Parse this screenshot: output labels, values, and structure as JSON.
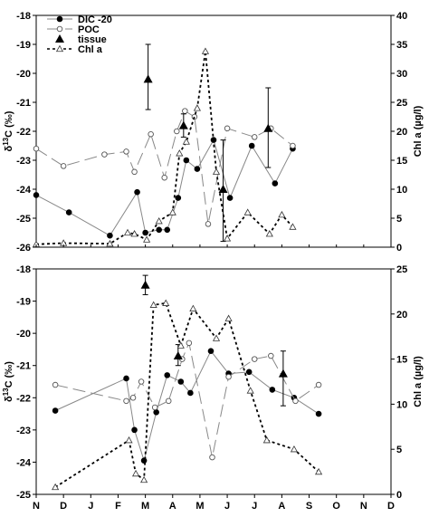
{
  "months": [
    "N",
    "D",
    "J",
    "F",
    "M",
    "A",
    "M",
    "J",
    "J",
    "A",
    "S",
    "O",
    "N",
    "D"
  ],
  "chart_data": [
    {
      "type": "line",
      "panel": "top",
      "ylabel_left": "δ13C (‰)",
      "ylabel_right": "Chl a (µg/l)",
      "ylim_left": [
        -26,
        -18
      ],
      "ylim_right": [
        0,
        40
      ],
      "yticks_left": [
        "-18",
        "-19",
        "-20",
        "-21",
        "-22",
        "-23",
        "-24",
        "-25",
        "-26"
      ],
      "yticks_right": [
        "40",
        "35",
        "30",
        "25",
        "20",
        "15",
        "10",
        "5",
        "0"
      ],
      "legend": {
        "placement": "top-left",
        "entries": [
          "DIC -20",
          "POC",
          "tissue",
          "Chl a"
        ]
      },
      "series": [
        {
          "name": "DIC -20",
          "axis": "left",
          "points": [
            [
              0.0,
              -24.2
            ],
            [
              1.2,
              -24.8
            ],
            [
              2.7,
              -25.6
            ],
            [
              3.7,
              -24.1
            ],
            [
              4.0,
              -25.5
            ],
            [
              4.5,
              -25.4
            ],
            [
              4.8,
              -25.4
            ],
            [
              5.2,
              -24.3
            ],
            [
              5.5,
              -23.0
            ],
            [
              5.9,
              -23.3
            ],
            [
              6.5,
              -22.3
            ],
            [
              7.1,
              -24.3
            ],
            [
              7.9,
              -22.5
            ],
            [
              8.75,
              -23.8
            ],
            [
              9.4,
              -22.6
            ]
          ]
        },
        {
          "name": "POC",
          "axis": "left",
          "points": [
            [
              0.0,
              -22.6
            ],
            [
              1.0,
              -23.2
            ],
            [
              2.5,
              -22.8
            ],
            [
              3.3,
              -22.7
            ],
            [
              3.6,
              -23.4
            ],
            [
              4.2,
              -22.1
            ],
            [
              4.7,
              -23.6
            ],
            [
              5.15,
              -22.0
            ],
            [
              5.45,
              -21.3
            ],
            [
              5.8,
              -21.5
            ],
            [
              6.3,
              -25.2
            ],
            [
              7.0,
              -21.9
            ],
            [
              8.0,
              -22.2
            ],
            [
              8.6,
              -21.9
            ],
            [
              9.4,
              -22.5
            ]
          ]
        },
        {
          "name": "tissue",
          "axis": "left",
          "points": [
            [
              4.1,
              -20.2,
              -21.25,
              -19.0
            ],
            [
              5.4,
              -21.8,
              -22.2,
              -21.4
            ],
            [
              6.85,
              -24.0,
              -25.8,
              -22.3
            ],
            [
              8.5,
              -21.9,
              -23.25,
              -20.5
            ]
          ]
        },
        {
          "name": "Chl a",
          "axis": "right",
          "points": [
            [
              0.0,
              0.5
            ],
            [
              1.0,
              0.7
            ],
            [
              2.7,
              0.6
            ],
            [
              3.35,
              2.5
            ],
            [
              3.6,
              2.3
            ],
            [
              4.05,
              1.3
            ],
            [
              4.5,
              4.5
            ],
            [
              5.0,
              6.0
            ],
            [
              5.25,
              16.2
            ],
            [
              5.5,
              18.2
            ],
            [
              5.9,
              24.0
            ],
            [
              6.2,
              33.8
            ],
            [
              6.6,
              13.0
            ],
            [
              7.0,
              1.5
            ],
            [
              7.75,
              6.0
            ],
            [
              8.55,
              2.3
            ],
            [
              9.0,
              5.6
            ],
            [
              9.4,
              3.5
            ]
          ]
        }
      ]
    },
    {
      "type": "line",
      "panel": "bottom",
      "ylabel_left": "δ13C (‰)",
      "ylabel_right": "Chl a (µg/l)",
      "ylim_left": [
        -25,
        -18
      ],
      "ylim_right": [
        0,
        25
      ],
      "yticks_left": [
        "-18",
        "-19",
        "-20",
        "-21",
        "-22",
        "-23",
        "-24",
        "-25"
      ],
      "yticks_right": [
        "25",
        "20",
        "15",
        "10",
        "5",
        "0"
      ],
      "x_month_range": [
        0,
        13
      ],
      "series": [
        {
          "name": "DIC -20",
          "axis": "left",
          "points": [
            [
              0.7,
              -22.4
            ],
            [
              3.3,
              -21.4
            ],
            [
              3.6,
              -23.0
            ],
            [
              3.95,
              -23.95
            ],
            [
              4.4,
              -22.45
            ],
            [
              4.8,
              -21.3
            ],
            [
              5.3,
              -21.5
            ],
            [
              5.65,
              -21.85
            ],
            [
              6.4,
              -20.55
            ],
            [
              7.05,
              -21.25
            ],
            [
              7.8,
              -21.2
            ],
            [
              8.65,
              -21.75
            ],
            [
              9.45,
              -22.0
            ],
            [
              10.35,
              -22.5
            ]
          ]
        },
        {
          "name": "POC",
          "axis": "left",
          "points": [
            [
              0.7,
              -21.6
            ],
            [
              3.3,
              -22.1
            ],
            [
              3.55,
              -22.0
            ],
            [
              3.85,
              -21.5
            ],
            [
              4.35,
              -22.3
            ],
            [
              4.85,
              -22.1
            ],
            [
              5.35,
              -20.8
            ],
            [
              5.6,
              -20.3
            ],
            [
              6.45,
              -23.85
            ],
            [
              7.05,
              -21.35
            ],
            [
              8.0,
              -20.8
            ],
            [
              8.6,
              -20.7
            ],
            [
              9.5,
              -22.1
            ],
            [
              10.35,
              -21.6
            ]
          ]
        },
        {
          "name": "tissue",
          "axis": "left",
          "points": [
            [
              4.0,
              -18.5,
              -18.8,
              -18.2
            ],
            [
              5.2,
              -20.7,
              -21.0,
              -20.35
            ],
            [
              9.05,
              -21.25,
              -22.25,
              -20.55
            ]
          ]
        },
        {
          "name": "Chl a",
          "axis": "right",
          "points": [
            [
              0.7,
              0.8
            ],
            [
              3.4,
              6.0
            ],
            [
              3.65,
              2.3
            ],
            [
              3.95,
              1.6
            ],
            [
              4.3,
              21.0
            ],
            [
              4.75,
              21.2
            ],
            [
              5.3,
              16.5
            ],
            [
              5.75,
              20.6
            ],
            [
              6.6,
              17.3
            ],
            [
              7.05,
              19.5
            ],
            [
              7.85,
              11.5
            ],
            [
              8.45,
              6.0
            ],
            [
              9.45,
              5.0
            ],
            [
              10.35,
              2.5
            ]
          ]
        }
      ]
    }
  ]
}
